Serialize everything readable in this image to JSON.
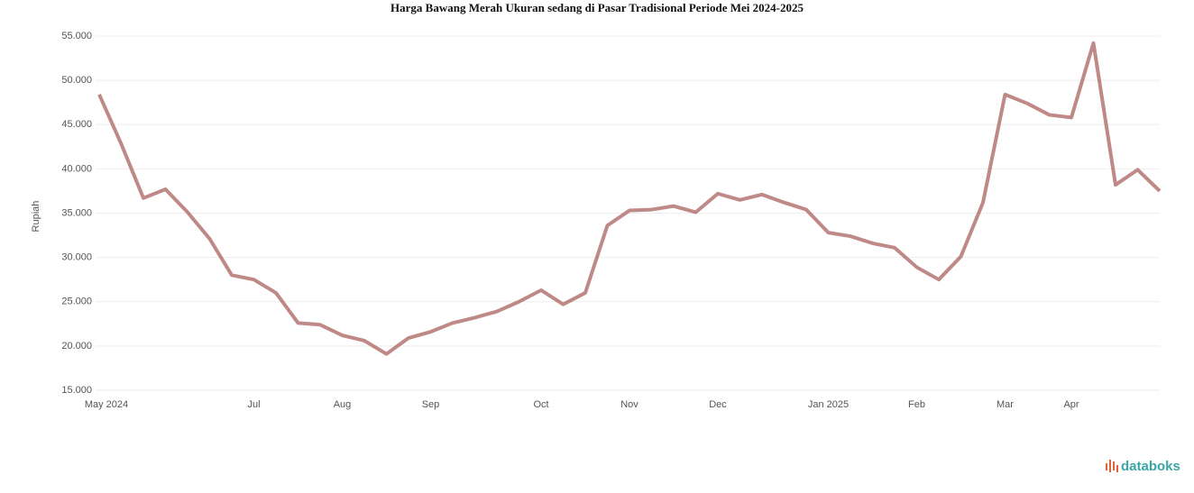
{
  "chart_data": {
    "type": "line",
    "title": "Harga Bawang Merah Ukuran sedang di Pasar Tradisional Periode Mei 2024-2025",
    "y_label": "Rupiah",
    "source": "databoks",
    "categories": [
      "May 2024",
      null,
      null,
      null,
      null,
      null,
      null,
      "Jul",
      null,
      null,
      null,
      "Aug",
      null,
      null,
      null,
      "Sep",
      null,
      null,
      null,
      null,
      "Oct",
      null,
      null,
      null,
      "Nov",
      null,
      null,
      null,
      "Dec",
      null,
      null,
      null,
      null,
      "Jan 2025",
      null,
      null,
      null,
      "Feb",
      null,
      null,
      null,
      "Mar",
      null,
      null,
      "Apr",
      null,
      null,
      null,
      null
    ],
    "series": [
      {
        "name": "Harga",
        "color": "#a8625e",
        "values": [
          48400,
          42800,
          36700,
          37700,
          35100,
          32100,
          28000,
          27500,
          26000,
          22600,
          22400,
          21200,
          20600,
          19100,
          20900,
          21600,
          22600,
          23200,
          23900,
          25000,
          26300,
          24700,
          26000,
          33600,
          35300,
          35400,
          35800,
          35100,
          37200,
          36500,
          37100,
          36200,
          35400,
          32800,
          32400,
          31600,
          31100,
          28900,
          27500,
          30100,
          36200,
          48400,
          47400,
          46100,
          45800,
          54200,
          38200,
          39900,
          37500
        ]
      }
    ],
    "ylim": [
      15000,
      55000
    ],
    "yticks": [
      {
        "value": 15000,
        "label": "15.000"
      },
      {
        "value": 20000,
        "label": "20.000"
      },
      {
        "value": 25000,
        "label": "25.000"
      },
      {
        "value": 30000,
        "label": "30.000"
      },
      {
        "value": 35000,
        "label": "35.000"
      },
      {
        "value": 40000,
        "label": "40.000"
      },
      {
        "value": 45000,
        "label": "45.000"
      },
      {
        "value": 50000,
        "label": "50.000"
      },
      {
        "value": 55000,
        "label": "55.000"
      }
    ],
    "grid": true
  }
}
